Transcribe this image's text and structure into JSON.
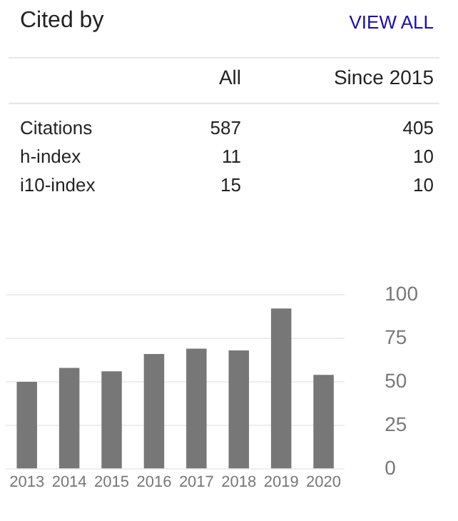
{
  "chart_data": [
    {
      "type": "other",
      "title": "Cited by",
      "annotations": [
        "VIEW ALL",
        "All",
        "Since 2015",
        "Citations",
        "587",
        "405",
        "h-index",
        "11",
        "10",
        "i10-index",
        "15",
        "10"
      ]
    },
    {
      "type": "bar",
      "categories": [
        "2013",
        "2014",
        "2015",
        "2016",
        "2017",
        "2018",
        "2019",
        "2020"
      ],
      "values": [
        50,
        58,
        56,
        66,
        69,
        68,
        92,
        54
      ],
      "color": "#777777",
      "ylim": [
        0,
        100
      ],
      "yticks": [
        0,
        25,
        50,
        75,
        100
      ],
      "grid": "y"
    }
  ]
}
